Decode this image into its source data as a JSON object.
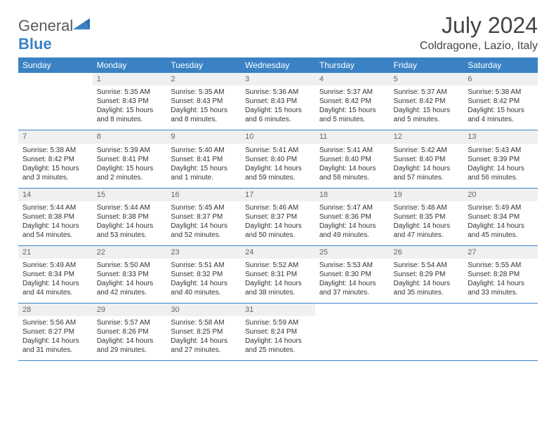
{
  "logo": {
    "text1": "General",
    "text2": "Blue"
  },
  "title": "July 2024",
  "location": "Coldragone, Lazio, Italy",
  "colors": {
    "header_bg": "#3a82c4",
    "header_text": "#ffffff",
    "daynum_bg": "#eef0f1",
    "daynum_text": "#666666",
    "cell_border": "#3a82c4",
    "body_text": "#333333",
    "logo_gray": "#5a5a5a",
    "logo_blue": "#3a82c4"
  },
  "typography": {
    "title_fontsize": 32,
    "location_fontsize": 16,
    "header_fontsize": 12,
    "cell_fontsize": 10,
    "daynum_fontsize": 11
  },
  "weekdays": [
    "Sunday",
    "Monday",
    "Tuesday",
    "Wednesday",
    "Thursday",
    "Friday",
    "Saturday"
  ],
  "weeks": [
    [
      {
        "num": "",
        "lines": []
      },
      {
        "num": "1",
        "lines": [
          "Sunrise: 5:35 AM",
          "Sunset: 8:43 PM",
          "Daylight: 15 hours",
          "and 8 minutes."
        ]
      },
      {
        "num": "2",
        "lines": [
          "Sunrise: 5:35 AM",
          "Sunset: 8:43 PM",
          "Daylight: 15 hours",
          "and 8 minutes."
        ]
      },
      {
        "num": "3",
        "lines": [
          "Sunrise: 5:36 AM",
          "Sunset: 8:43 PM",
          "Daylight: 15 hours",
          "and 6 minutes."
        ]
      },
      {
        "num": "4",
        "lines": [
          "Sunrise: 5:37 AM",
          "Sunset: 8:42 PM",
          "Daylight: 15 hours",
          "and 5 minutes."
        ]
      },
      {
        "num": "5",
        "lines": [
          "Sunrise: 5:37 AM",
          "Sunset: 8:42 PM",
          "Daylight: 15 hours",
          "and 5 minutes."
        ]
      },
      {
        "num": "6",
        "lines": [
          "Sunrise: 5:38 AM",
          "Sunset: 8:42 PM",
          "Daylight: 15 hours",
          "and 4 minutes."
        ]
      }
    ],
    [
      {
        "num": "7",
        "lines": [
          "Sunrise: 5:38 AM",
          "Sunset: 8:42 PM",
          "Daylight: 15 hours",
          "and 3 minutes."
        ]
      },
      {
        "num": "8",
        "lines": [
          "Sunrise: 5:39 AM",
          "Sunset: 8:41 PM",
          "Daylight: 15 hours",
          "and 2 minutes."
        ]
      },
      {
        "num": "9",
        "lines": [
          "Sunrise: 5:40 AM",
          "Sunset: 8:41 PM",
          "Daylight: 15 hours",
          "and 1 minute."
        ]
      },
      {
        "num": "10",
        "lines": [
          "Sunrise: 5:41 AM",
          "Sunset: 8:40 PM",
          "Daylight: 14 hours",
          "and 59 minutes."
        ]
      },
      {
        "num": "11",
        "lines": [
          "Sunrise: 5:41 AM",
          "Sunset: 8:40 PM",
          "Daylight: 14 hours",
          "and 58 minutes."
        ]
      },
      {
        "num": "12",
        "lines": [
          "Sunrise: 5:42 AM",
          "Sunset: 8:40 PM",
          "Daylight: 14 hours",
          "and 57 minutes."
        ]
      },
      {
        "num": "13",
        "lines": [
          "Sunrise: 5:43 AM",
          "Sunset: 8:39 PM",
          "Daylight: 14 hours",
          "and 56 minutes."
        ]
      }
    ],
    [
      {
        "num": "14",
        "lines": [
          "Sunrise: 5:44 AM",
          "Sunset: 8:38 PM",
          "Daylight: 14 hours",
          "and 54 minutes."
        ]
      },
      {
        "num": "15",
        "lines": [
          "Sunrise: 5:44 AM",
          "Sunset: 8:38 PM",
          "Daylight: 14 hours",
          "and 53 minutes."
        ]
      },
      {
        "num": "16",
        "lines": [
          "Sunrise: 5:45 AM",
          "Sunset: 8:37 PM",
          "Daylight: 14 hours",
          "and 52 minutes."
        ]
      },
      {
        "num": "17",
        "lines": [
          "Sunrise: 5:46 AM",
          "Sunset: 8:37 PM",
          "Daylight: 14 hours",
          "and 50 minutes."
        ]
      },
      {
        "num": "18",
        "lines": [
          "Sunrise: 5:47 AM",
          "Sunset: 8:36 PM",
          "Daylight: 14 hours",
          "and 49 minutes."
        ]
      },
      {
        "num": "19",
        "lines": [
          "Sunrise: 5:48 AM",
          "Sunset: 8:35 PM",
          "Daylight: 14 hours",
          "and 47 minutes."
        ]
      },
      {
        "num": "20",
        "lines": [
          "Sunrise: 5:49 AM",
          "Sunset: 8:34 PM",
          "Daylight: 14 hours",
          "and 45 minutes."
        ]
      }
    ],
    [
      {
        "num": "21",
        "lines": [
          "Sunrise: 5:49 AM",
          "Sunset: 8:34 PM",
          "Daylight: 14 hours",
          "and 44 minutes."
        ]
      },
      {
        "num": "22",
        "lines": [
          "Sunrise: 5:50 AM",
          "Sunset: 8:33 PM",
          "Daylight: 14 hours",
          "and 42 minutes."
        ]
      },
      {
        "num": "23",
        "lines": [
          "Sunrise: 5:51 AM",
          "Sunset: 8:32 PM",
          "Daylight: 14 hours",
          "and 40 minutes."
        ]
      },
      {
        "num": "24",
        "lines": [
          "Sunrise: 5:52 AM",
          "Sunset: 8:31 PM",
          "Daylight: 14 hours",
          "and 38 minutes."
        ]
      },
      {
        "num": "25",
        "lines": [
          "Sunrise: 5:53 AM",
          "Sunset: 8:30 PM",
          "Daylight: 14 hours",
          "and 37 minutes."
        ]
      },
      {
        "num": "26",
        "lines": [
          "Sunrise: 5:54 AM",
          "Sunset: 8:29 PM",
          "Daylight: 14 hours",
          "and 35 minutes."
        ]
      },
      {
        "num": "27",
        "lines": [
          "Sunrise: 5:55 AM",
          "Sunset: 8:28 PM",
          "Daylight: 14 hours",
          "and 33 minutes."
        ]
      }
    ],
    [
      {
        "num": "28",
        "lines": [
          "Sunrise: 5:56 AM",
          "Sunset: 8:27 PM",
          "Daylight: 14 hours",
          "and 31 minutes."
        ]
      },
      {
        "num": "29",
        "lines": [
          "Sunrise: 5:57 AM",
          "Sunset: 8:26 PM",
          "Daylight: 14 hours",
          "and 29 minutes."
        ]
      },
      {
        "num": "30",
        "lines": [
          "Sunrise: 5:58 AM",
          "Sunset: 8:25 PM",
          "Daylight: 14 hours",
          "and 27 minutes."
        ]
      },
      {
        "num": "31",
        "lines": [
          "Sunrise: 5:59 AM",
          "Sunset: 8:24 PM",
          "Daylight: 14 hours",
          "and 25 minutes."
        ]
      },
      {
        "num": "",
        "lines": []
      },
      {
        "num": "",
        "lines": []
      },
      {
        "num": "",
        "lines": []
      }
    ]
  ]
}
